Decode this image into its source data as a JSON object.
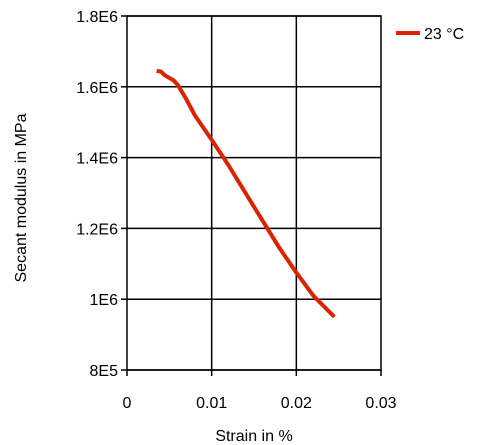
{
  "chart_data": {
    "type": "line",
    "xlabel": "Strain in %",
    "ylabel": "Secant modulus in MPa",
    "xlim": [
      0,
      0.03
    ],
    "ylim": [
      800000,
      1800000
    ],
    "x_ticks": [
      {
        "value": 0,
        "label": "0"
      },
      {
        "value": 0.01,
        "label": "0.01"
      },
      {
        "value": 0.02,
        "label": "0.02"
      },
      {
        "value": 0.03,
        "label": "0.03"
      }
    ],
    "y_ticks": [
      {
        "value": 800000,
        "label": "8E5"
      },
      {
        "value": 1000000,
        "label": "1E6"
      },
      {
        "value": 1200000,
        "label": "1.2E6"
      },
      {
        "value": 1400000,
        "label": "1.4E6"
      },
      {
        "value": 1600000,
        "label": "1.6E6"
      },
      {
        "value": 1800000,
        "label": "1.8E6"
      }
    ],
    "grid": true,
    "legend_position": "top-right",
    "series": [
      {
        "name": "23 °C",
        "color": "#dd2200",
        "x": [
          0.0035,
          0.004,
          0.0045,
          0.005,
          0.0055,
          0.006,
          0.007,
          0.008,
          0.009,
          0.01,
          0.012,
          0.014,
          0.016,
          0.018,
          0.02,
          0.022,
          0.0245
        ],
        "y": [
          1645000,
          1643000,
          1632000,
          1625000,
          1618000,
          1605000,
          1565000,
          1520000,
          1485000,
          1450000,
          1378000,
          1300000,
          1222000,
          1145000,
          1075000,
          1010000,
          950000
        ]
      }
    ]
  }
}
